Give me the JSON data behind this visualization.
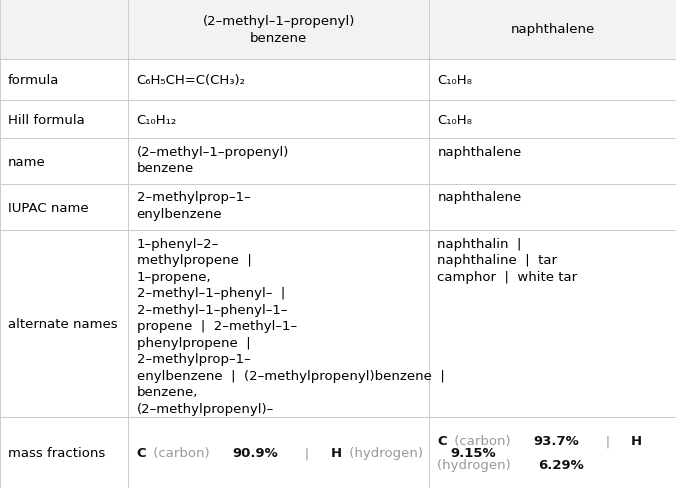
{
  "col_bounds": [
    0.0,
    0.19,
    0.635,
    1.0
  ],
  "row_tops": [
    1.0,
    0.878,
    0.793,
    0.715,
    0.622,
    0.527,
    0.145,
    0.0
  ],
  "header_bg": "#f2f2f2",
  "grid_color": "#cccccc",
  "text_color": "#000000",
  "subtext_color": "#999999",
  "bg_color": "#ffffff",
  "font_size": 9.5,
  "header_font_size": 9.5,
  "col_header_1": "(2–methyl–1–propenyl)\nbenzene",
  "col_header_2": "naphthalene",
  "row_labels": [
    "formula",
    "Hill formula",
    "name",
    "IUPAC name",
    "alternate names",
    "mass fractions"
  ],
  "formula_c1": "C₆H₅CH=C(CH₃)₂",
  "formula_c2": "C₁₀H₈",
  "hill_c1": "C₁₀H₁₂",
  "hill_c2": "C₁₀H₈",
  "name_c1": "(2–methyl–1–propenyl)\nbenzene",
  "name_c2": "naphthalene",
  "iupac_c1": "2–methylprop–1–\nenylbenzene",
  "iupac_c2": "naphthalene",
  "alt_c1": "1–phenyl–2–\nmethylpropene  |\n1–propene,\n2–methyl–1–phenyl–  |\n2–methyl–1–phenyl–1–\npropene  |  2–methyl–1–\nphenylpropene  |\n2–methylprop–1–\nenylbenzene  |  (2–methylpropenyl)benzene  |\nbenzene,\n(2–methylpropenyl)–",
  "alt_c2": "naphthalin  |\nnaphthaline  |  tar\ncamphor  |  white tar",
  "mf_c1_parts": [
    [
      "C",
      "#111111",
      true
    ],
    [
      " (carbon) ",
      "#999999",
      false
    ],
    [
      "90.9%",
      "#111111",
      true
    ],
    [
      "   |   ",
      "#999999",
      false
    ],
    [
      "H",
      "#111111",
      true
    ],
    [
      " (hydrogen) ",
      "#999999",
      false
    ],
    [
      "9.15%",
      "#111111",
      true
    ]
  ],
  "mf_c2_line1_parts": [
    [
      "C",
      "#111111",
      true
    ],
    [
      " (carbon) ",
      "#999999",
      false
    ],
    [
      "93.7%",
      "#111111",
      true
    ],
    [
      "   |   ",
      "#999999",
      false
    ],
    [
      "H",
      "#111111",
      true
    ]
  ],
  "mf_c2_line2_parts": [
    [
      "(hydrogen) ",
      "#999999",
      false
    ],
    [
      "6.29%",
      "#111111",
      true
    ]
  ]
}
